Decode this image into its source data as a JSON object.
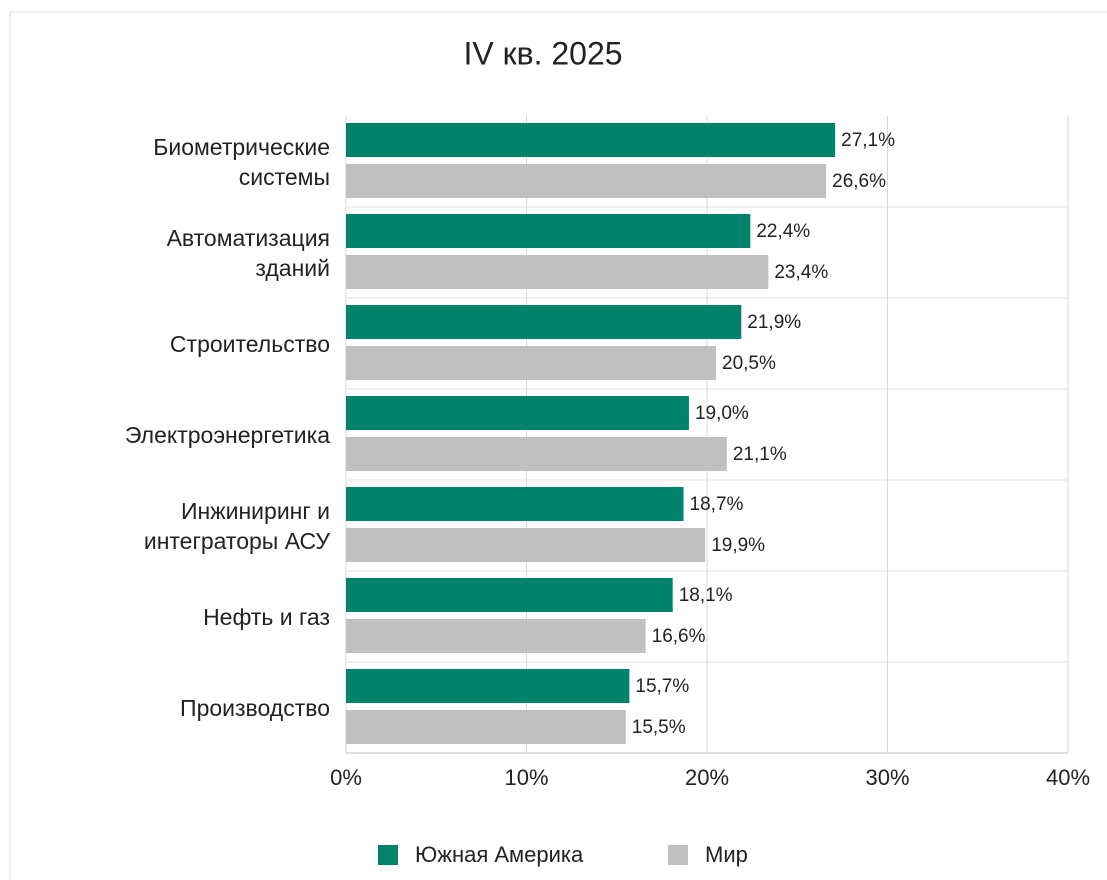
{
  "chart_data": {
    "type": "barh",
    "title": "IV кв. 2025",
    "categories": [
      "Биометрические\nсистемы",
      "Автоматизация\nзданий",
      "Строительство",
      "Электроэнергетика",
      "Инжиниринг и\nинтеграторы АСУ",
      "Нефть и газ",
      "Производство"
    ],
    "series": [
      {
        "name": "Южная Америка",
        "color": "#00826b",
        "values": [
          27.1,
          22.4,
          21.9,
          19.0,
          18.7,
          18.1,
          15.7
        ],
        "value_labels": [
          "27,1%",
          "22,4%",
          "21,9%",
          "19,0%",
          "18,7%",
          "18,1%",
          "15,7%"
        ]
      },
      {
        "name": "Мир",
        "color": "#c0c0c0",
        "values": [
          26.6,
          23.4,
          20.5,
          21.1,
          19.9,
          16.6,
          15.5
        ],
        "value_labels": [
          "26,6%",
          "23,4%",
          "20,5%",
          "21,1%",
          "19,9%",
          "16,6%",
          "15,5%"
        ]
      }
    ],
    "xlim": [
      0,
      40
    ],
    "xticks": [
      {
        "value": 0,
        "label": "0%"
      },
      {
        "value": 10,
        "label": "10%"
      },
      {
        "value": 20,
        "label": "20%"
      },
      {
        "value": 30,
        "label": "30%"
      },
      {
        "value": 40,
        "label": "40%"
      }
    ],
    "grid": true,
    "legend": "bottom"
  }
}
